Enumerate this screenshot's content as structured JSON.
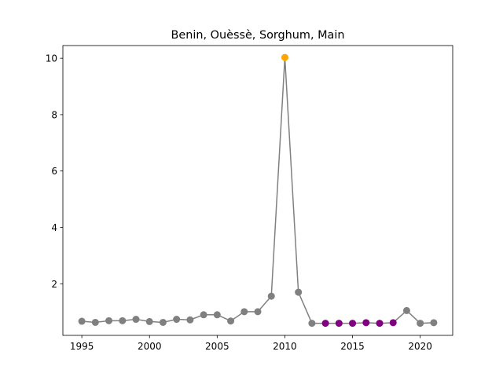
{
  "chart_data": {
    "type": "line",
    "title": "Benin, Ouèssè, Sorghum, Main",
    "xlabel": "",
    "ylabel": "",
    "xlim": [
      1993.6,
      2022.4
    ],
    "ylim": [
      0.17,
      10.45
    ],
    "x_ticks": [
      1995,
      2000,
      2005,
      2010,
      2015,
      2020
    ],
    "y_ticks": [
      2,
      4,
      6,
      8,
      10
    ],
    "grid": false,
    "line_color": "#808080",
    "x": [
      1995,
      1996,
      1997,
      1998,
      1999,
      2000,
      2001,
      2002,
      2003,
      2004,
      2005,
      2006,
      2007,
      2008,
      2009,
      2010,
      2011,
      2012,
      2013,
      2014,
      2015,
      2016,
      2017,
      2018,
      2019,
      2020,
      2021
    ],
    "y": [
      0.67,
      0.63,
      0.69,
      0.69,
      0.74,
      0.66,
      0.63,
      0.74,
      0.72,
      0.9,
      0.9,
      0.68,
      1.01,
      1.01,
      1.56,
      10.03,
      1.7,
      0.6,
      0.6,
      0.6,
      0.6,
      0.62,
      0.6,
      0.62,
      1.05,
      0.6,
      0.62
    ],
    "point_colors": [
      "#808080",
      "#808080",
      "#808080",
      "#808080",
      "#808080",
      "#808080",
      "#808080",
      "#808080",
      "#808080",
      "#808080",
      "#808080",
      "#808080",
      "#808080",
      "#808080",
      "#808080",
      "#ffa500",
      "#808080",
      "#808080",
      "#800080",
      "#800080",
      "#800080",
      "#800080",
      "#800080",
      "#800080",
      "#808080",
      "#808080",
      "#808080"
    ]
  }
}
